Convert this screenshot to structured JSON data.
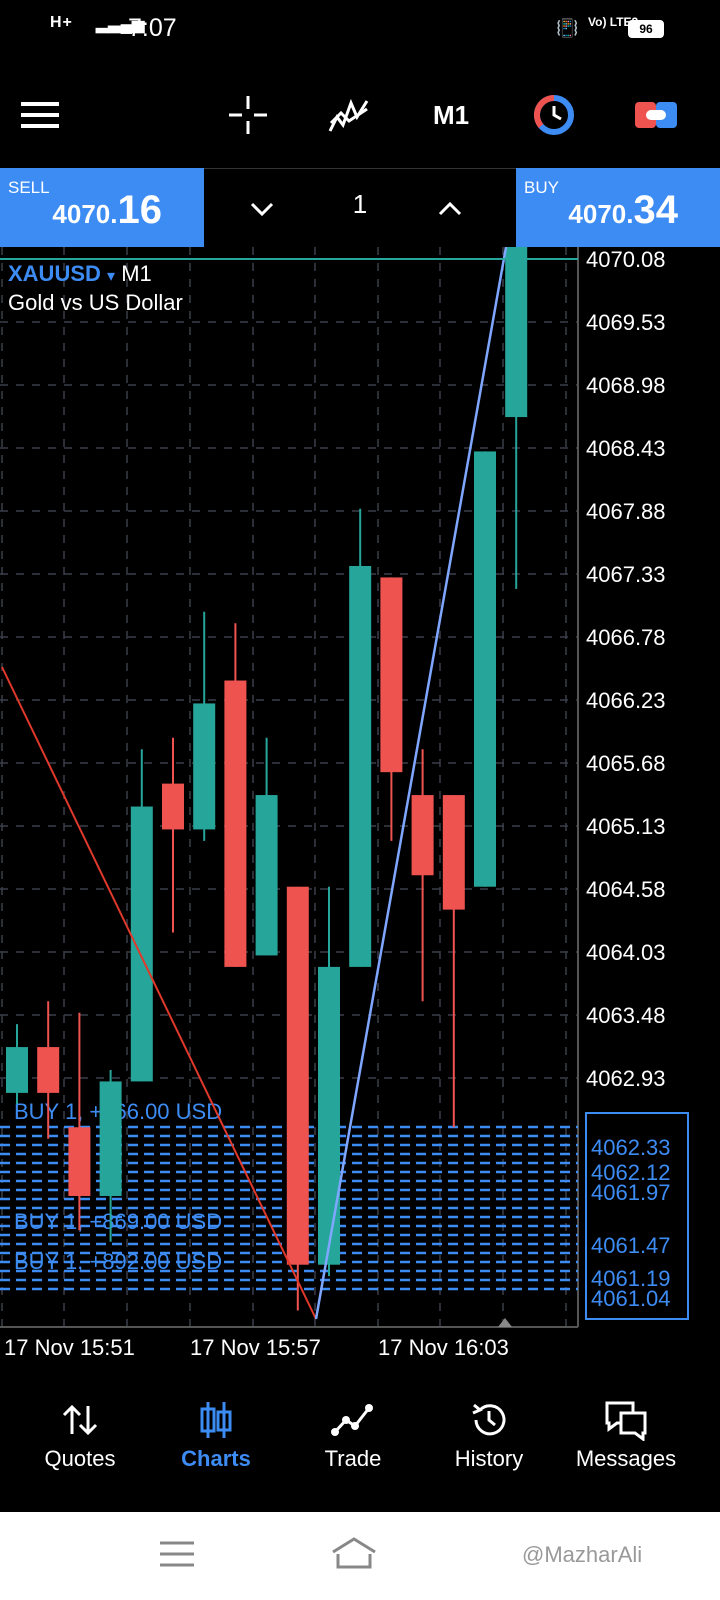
{
  "status_bar": {
    "time": "7:07",
    "signal1": "H+",
    "volte": "Vo) LTE2",
    "battery": "96"
  },
  "toolbar": {
    "timeframe": "M1",
    "icons": [
      "menu-icon",
      "crosshair-icon",
      "indicators-icon",
      "timeframe-label",
      "clock-icon",
      "toggle-icon"
    ]
  },
  "trade": {
    "sell_label": "SELL",
    "sell_price_prefix": "4070.",
    "sell_price_big": "16",
    "buy_label": "BUY",
    "buy_price_prefix": "4070.",
    "buy_price_big": "34",
    "volume": "1"
  },
  "chart": {
    "symbol": "XAUUSD",
    "symbol_arrow": "▾",
    "timeframe": "M1",
    "description": "Gold vs US Dollar",
    "colors": {
      "bull": "#26a69a",
      "bear": "#ef5350",
      "orders": "#3d8cf4",
      "bid_line": "#26a69a",
      "trend_red": "#e0392b",
      "trend_blue": "#7fa7ff"
    }
  },
  "chart_data": {
    "type": "candlestick",
    "y_ticks": [
      "4070.08",
      "4069.53",
      "4068.98",
      "4068.43",
      "4067.88",
      "4067.33",
      "4066.78",
      "4066.23",
      "4065.68",
      "4065.13",
      "4064.58",
      "4064.03",
      "4063.48",
      "4062.93"
    ],
    "ylim": [
      4060.5,
      4070.2
    ],
    "x_ticks": [
      "17 Nov 15:51",
      "17 Nov 15:57",
      "17 Nov 16:03"
    ],
    "candles": [
      {
        "o": 4062.8,
        "h": 4063.4,
        "l": 4062.7,
        "c": 4063.2
      },
      {
        "o": 4063.2,
        "h": 4063.6,
        "l": 4062.4,
        "c": 4062.8
      },
      {
        "o": 4062.5,
        "h": 4063.5,
        "l": 4061.6,
        "c": 4061.9
      },
      {
        "o": 4061.9,
        "h": 4063.0,
        "l": 4061.5,
        "c": 4062.9
      },
      {
        "o": 4062.9,
        "h": 4065.8,
        "l": 4062.9,
        "c": 4065.3
      },
      {
        "o": 4065.5,
        "h": 4065.9,
        "l": 4064.2,
        "c": 4065.1
      },
      {
        "o": 4065.1,
        "h": 4067.0,
        "l": 4065.0,
        "c": 4066.2
      },
      {
        "o": 4066.4,
        "h": 4066.9,
        "l": 4063.9,
        "c": 4063.9
      },
      {
        "o": 4064.0,
        "h": 4065.9,
        "l": 4064.0,
        "c": 4065.4
      },
      {
        "o": 4064.6,
        "h": 4064.6,
        "l": 4060.9,
        "c": 4061.3
      },
      {
        "o": 4061.3,
        "h": 4064.6,
        "l": 4061.2,
        "c": 4063.9
      },
      {
        "o": 4063.9,
        "h": 4067.9,
        "l": 4063.9,
        "c": 4067.4
      },
      {
        "o": 4067.3,
        "h": 4067.3,
        "l": 4065.0,
        "c": 4065.6
      },
      {
        "o": 4065.4,
        "h": 4065.8,
        "l": 4063.6,
        "c": 4064.7
      },
      {
        "o": 4065.4,
        "h": 4065.4,
        "l": 4062.5,
        "c": 4064.4
      },
      {
        "o": 4064.6,
        "h": 4068.4,
        "l": 4064.6,
        "c": 4068.4
      },
      {
        "o": 4068.7,
        "h": 4070.4,
        "l": 4067.2,
        "c": 4070.2
      }
    ],
    "order_labels": [
      "BUY 1, +766.00 USD",
      "BUY 1, +869.00 USD",
      "BUY 1, +892.00 USD"
    ],
    "order_price_labels": [
      "4062.33",
      "4062.12",
      "4061.97",
      "4061.47",
      "4061.19",
      "4061.04"
    ],
    "bid": 4070.08
  },
  "nav": {
    "items": [
      {
        "label": "Quotes",
        "icon": "quotes-icon",
        "active": false
      },
      {
        "label": "Charts",
        "icon": "charts-icon",
        "active": true
      },
      {
        "label": "Trade",
        "icon": "trade-icon",
        "active": false
      },
      {
        "label": "History",
        "icon": "history-icon",
        "active": false
      },
      {
        "label": "Messages",
        "icon": "messages-icon",
        "active": false
      }
    ]
  },
  "watermark": "@MazharAli"
}
